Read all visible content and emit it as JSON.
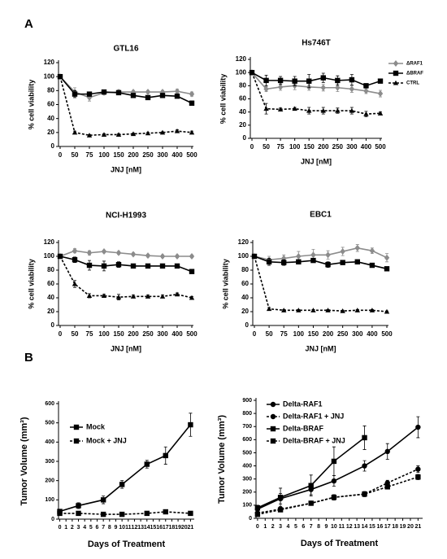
{
  "figure": {
    "panel_a": "A",
    "panel_b": "B"
  },
  "chart_data": [
    {
      "type": "line",
      "title": "GTL16",
      "xlabel": "JNJ [nM]",
      "ylabel": "% cell viability",
      "categories": [
        "0",
        "50",
        "75",
        "100",
        "150",
        "200",
        "250",
        "300",
        "400",
        "500"
      ],
      "ylim": [
        0,
        120
      ],
      "yticks": [
        0,
        20,
        40,
        60,
        80,
        100,
        120
      ],
      "legend": "none",
      "series": [
        {
          "name": "ΔRAF1",
          "color": "#8c8c8c",
          "marker": "diamond",
          "dash": false,
          "values": [
            100,
            78,
            70,
            77,
            78,
            78,
            78,
            78,
            79,
            75
          ],
          "errors": [
            0,
            6,
            5,
            3,
            3,
            2,
            2,
            2,
            3,
            3
          ]
        },
        {
          "name": "ΔBRAF",
          "color": "#000000",
          "marker": "square",
          "dash": false,
          "values": [
            100,
            75,
            75,
            78,
            77,
            73,
            70,
            73,
            72,
            62
          ],
          "errors": [
            0,
            5,
            3,
            3,
            2,
            2,
            2,
            2,
            2,
            3
          ]
        },
        {
          "name": "CTRL",
          "color": "#000000",
          "marker": "triangle",
          "dash": true,
          "values": [
            100,
            20,
            16,
            17,
            17,
            18,
            19,
            20,
            22,
            20
          ],
          "errors": [
            0,
            2,
            1,
            1,
            1,
            1,
            1,
            1,
            2,
            2
          ]
        }
      ]
    },
    {
      "type": "line",
      "title": "Hs746T",
      "xlabel": "JNJ [nM]",
      "ylabel": "% cell viability",
      "categories": [
        "0",
        "50",
        "75",
        "100",
        "150",
        "200",
        "250",
        "300",
        "400",
        "500"
      ],
      "ylim": [
        0,
        120
      ],
      "yticks": [
        0,
        20,
        40,
        60,
        80,
        100,
        120
      ],
      "legend": "right",
      "series": [
        {
          "name": "ΔRAF1",
          "color": "#8c8c8c",
          "marker": "diamond",
          "dash": false,
          "values": [
            100,
            75,
            78,
            80,
            78,
            77,
            77,
            75,
            72,
            68
          ],
          "errors": [
            0,
            4,
            5,
            6,
            5,
            5,
            6,
            5,
            4,
            5
          ]
        },
        {
          "name": "ΔBRAF",
          "color": "#000000",
          "marker": "square",
          "dash": false,
          "values": [
            100,
            88,
            88,
            87,
            87,
            92,
            88,
            89,
            80,
            87
          ],
          "errors": [
            0,
            8,
            6,
            7,
            10,
            7,
            7,
            8,
            3,
            2
          ]
        },
        {
          "name": "CTRL",
          "color": "#000000",
          "marker": "triangle",
          "dash": true,
          "values": [
            100,
            45,
            44,
            45,
            42,
            42,
            42,
            42,
            37,
            38
          ],
          "errors": [
            0,
            8,
            2,
            2,
            5,
            5,
            4,
            5,
            4,
            2
          ]
        }
      ]
    },
    {
      "type": "line",
      "title": "NCI-H1993",
      "xlabel": "JNJ [nM]",
      "ylabel": "% cell viability",
      "categories": [
        "0",
        "50",
        "75",
        "100",
        "150",
        "200",
        "250",
        "300",
        "400",
        "500"
      ],
      "ylim": [
        0,
        120
      ],
      "yticks": [
        0,
        20,
        40,
        60,
        80,
        100,
        120
      ],
      "legend": "none",
      "series": [
        {
          "name": "ΔRAF1",
          "color": "#8c8c8c",
          "marker": "diamond",
          "dash": false,
          "values": [
            100,
            108,
            105,
            107,
            105,
            103,
            101,
            100,
            100,
            100
          ],
          "errors": [
            0,
            3,
            3,
            2,
            2,
            2,
            2,
            2,
            2,
            2
          ]
        },
        {
          "name": "ΔBRAF",
          "color": "#000000",
          "marker": "square",
          "dash": false,
          "values": [
            100,
            95,
            87,
            86,
            88,
            86,
            86,
            86,
            86,
            78
          ],
          "errors": [
            0,
            4,
            7,
            7,
            4,
            3,
            3,
            3,
            3,
            2
          ]
        },
        {
          "name": "CTRL",
          "color": "#000000",
          "marker": "triangle",
          "dash": true,
          "values": [
            100,
            60,
            43,
            43,
            41,
            42,
            42,
            42,
            45,
            40
          ],
          "errors": [
            0,
            5,
            3,
            2,
            4,
            2,
            2,
            2,
            2,
            2
          ]
        }
      ]
    },
    {
      "type": "line",
      "title": "EBC1",
      "xlabel": "JNJ [nM]",
      "ylabel": "% cell viability",
      "categories": [
        "0",
        "50",
        "75",
        "100",
        "150",
        "200",
        "250",
        "300",
        "400",
        "500"
      ],
      "ylim": [
        0,
        120
      ],
      "yticks": [
        0,
        20,
        40,
        60,
        80,
        100,
        120
      ],
      "legend": "none",
      "series": [
        {
          "name": "ΔRAF1",
          "color": "#8c8c8c",
          "marker": "diamond",
          "dash": false,
          "values": [
            100,
            95,
            97,
            100,
            102,
            102,
            107,
            112,
            108,
            98
          ],
          "errors": [
            0,
            5,
            5,
            7,
            8,
            6,
            6,
            5,
            4,
            6
          ]
        },
        {
          "name": "ΔBRAF",
          "color": "#000000",
          "marker": "square",
          "dash": false,
          "values": [
            100,
            92,
            91,
            92,
            94,
            88,
            91,
            92,
            87,
            82
          ],
          "errors": [
            0,
            5,
            4,
            3,
            3,
            4,
            3,
            3,
            2,
            2
          ]
        },
        {
          "name": "CTRL",
          "color": "#000000",
          "marker": "triangle",
          "dash": true,
          "values": [
            100,
            24,
            22,
            22,
            22,
            22,
            21,
            22,
            22,
            20
          ],
          "errors": [
            0,
            2,
            1,
            1,
            1,
            1,
            1,
            1,
            1,
            1
          ]
        }
      ]
    },
    {
      "type": "line",
      "xlabel": "Days of Treatment",
      "ylabel": "Tumor Volume (mm³)",
      "xlim": [
        -0.2,
        21.6
      ],
      "xticks": [
        0,
        1,
        2,
        3,
        4,
        5,
        6,
        7,
        8,
        9,
        10,
        11,
        12,
        13,
        14,
        15,
        16,
        17,
        18,
        19,
        20,
        21
      ],
      "ylim": [
        0,
        600
      ],
      "yticks": [
        0,
        100,
        200,
        300,
        400,
        500,
        600
      ],
      "legend": "upper left",
      "series": [
        {
          "name": "Mock",
          "color": "#000000",
          "marker": "square",
          "dash": false,
          "x": [
            0,
            3,
            7,
            10,
            14,
            17,
            21
          ],
          "values": [
            40,
            70,
            100,
            180,
            285,
            330,
            490
          ],
          "errors": [
            10,
            15,
            20,
            20,
            20,
            45,
            60
          ]
        },
        {
          "name": "Mock + JNJ",
          "color": "#000000",
          "marker": "square",
          "dash": true,
          "x": [
            0,
            3,
            7,
            10,
            14,
            17,
            21
          ],
          "values": [
            30,
            30,
            25,
            25,
            30,
            38,
            30
          ],
          "errors": [
            3,
            3,
            3,
            3,
            3,
            3,
            3
          ]
        }
      ]
    },
    {
      "type": "line",
      "xlabel": "Days of Treatment",
      "ylabel": "Tumor Volume (mm³)",
      "xlim": [
        -0.2,
        21.6
      ],
      "xticks": [
        0,
        1,
        2,
        3,
        4,
        5,
        6,
        7,
        8,
        9,
        10,
        11,
        12,
        13,
        14,
        15,
        16,
        17,
        18,
        19,
        20,
        21
      ],
      "ylim": [
        0,
        900
      ],
      "yticks": [
        0,
        100,
        200,
        300,
        400,
        500,
        600,
        700,
        800,
        900
      ],
      "legend": "upper left",
      "series": [
        {
          "name": "Delta-RAF1",
          "color": "#000000",
          "marker": "circle",
          "dash": false,
          "x": [
            0,
            3,
            7,
            10,
            14,
            17,
            21
          ],
          "values": [
            70,
            150,
            220,
            285,
            400,
            510,
            695
          ],
          "errors": [
            20,
            40,
            40,
            40,
            40,
            60,
            80
          ]
        },
        {
          "name": "Delta-RAF1 + JNJ",
          "color": "#000000",
          "marker": "circle",
          "dash": true,
          "x": [
            0,
            3,
            7,
            10,
            14,
            17,
            21
          ],
          "values": [
            40,
            70,
            115,
            160,
            185,
            270,
            375
          ],
          "errors": [
            10,
            10,
            15,
            20,
            20,
            20,
            25
          ]
        },
        {
          "name": "Delta-BRAF",
          "color": "#000000",
          "marker": "square",
          "dash": false,
          "x": [
            0,
            3,
            7,
            10,
            14
          ],
          "values": [
            80,
            160,
            250,
            435,
            615
          ],
          "errors": [
            20,
            70,
            80,
            110,
            90
          ]
        },
        {
          "name": "Delta-BRAF + JNJ",
          "color": "#000000",
          "marker": "square",
          "dash": true,
          "x": [
            0,
            3,
            7,
            10,
            14,
            17,
            21
          ],
          "values": [
            30,
            65,
            115,
            160,
            185,
            240,
            315
          ],
          "errors": [
            10,
            10,
            15,
            20,
            15,
            15,
            20
          ]
        }
      ]
    }
  ]
}
